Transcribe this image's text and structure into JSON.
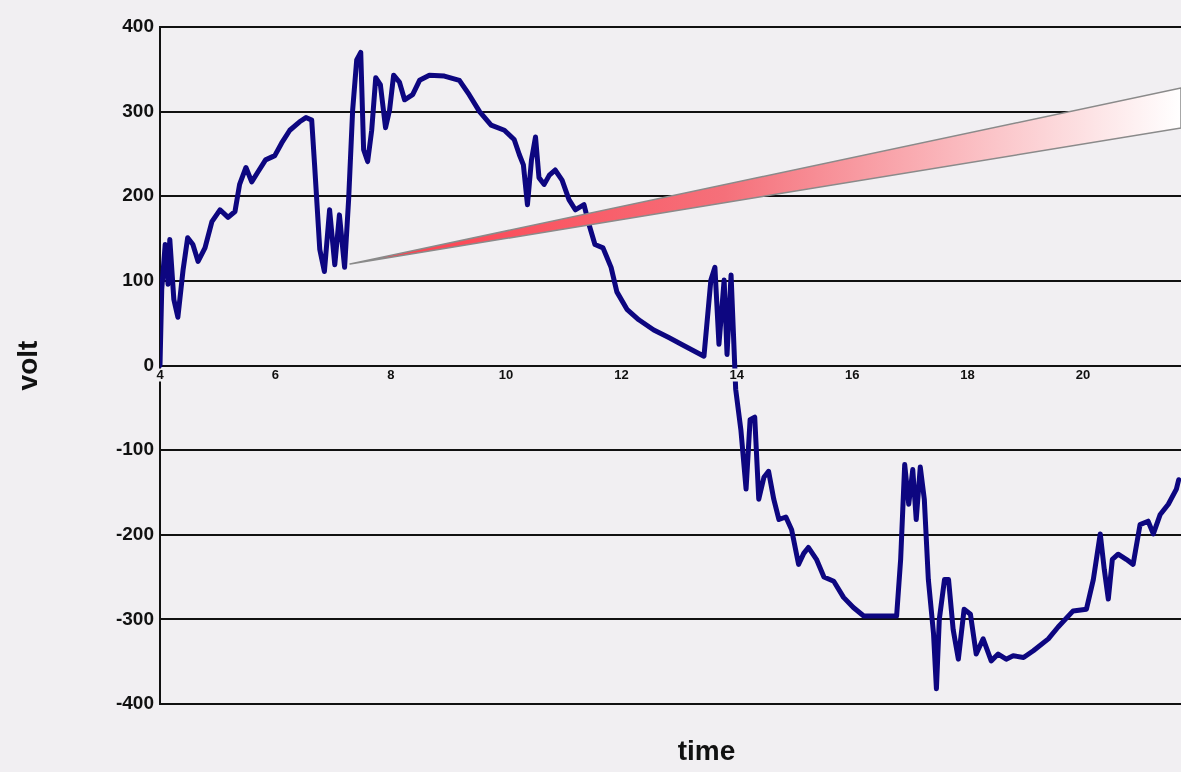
{
  "chart_data": {
    "type": "line",
    "xlabel": "time",
    "ylabel": "volt",
    "xlim": [
      4,
      21.7
    ],
    "xticks": [
      4,
      6,
      8,
      10,
      12,
      14,
      16,
      18,
      20
    ],
    "ylim": [
      -400,
      400
    ],
    "yticks": [
      -400,
      -300,
      -200,
      -100,
      0,
      100,
      200,
      300,
      400
    ],
    "grid": "y",
    "legend": false,
    "marker": "none",
    "line_style": "solid",
    "series": [
      {
        "color": "#0d0680",
        "x": [
          4,
          4.03,
          4.09,
          4.14,
          4.17,
          4.24,
          4.31,
          4.4,
          4.48,
          4.57,
          4.66,
          4.78,
          4.9,
          5.04,
          5.18,
          5.3,
          5.38,
          5.49,
          5.59,
          5.7,
          5.83,
          5.99,
          6.11,
          6.25,
          6.42,
          6.53,
          6.63,
          6.68,
          6.77,
          6.85,
          6.94,
          7.03,
          7.11,
          7.2,
          7.27,
          7.34,
          7.41,
          7.48,
          7.53,
          7.6,
          7.67,
          7.74,
          7.82,
          7.91,
          7.98,
          8.05,
          8.15,
          8.24,
          8.38,
          8.5,
          8.67,
          8.93,
          9.19,
          9.36,
          9.54,
          9.74,
          9.97,
          10.14,
          10.23,
          10.3,
          10.37,
          10.44,
          10.51,
          10.57,
          10.66,
          10.75,
          10.85,
          10.97,
          11.09,
          11.2,
          11.35,
          11.44,
          11.54,
          11.68,
          11.82,
          11.92,
          12.1,
          12.3,
          12.56,
          12.82,
          13.07,
          13.43,
          13.55,
          13.62,
          13.69,
          13.78,
          13.83,
          13.9,
          13.98,
          14.07,
          14.16,
          14.23,
          14.31,
          14.38,
          14.47,
          14.55,
          14.64,
          14.73,
          14.85,
          14.95,
          15.07,
          15.16,
          15.24,
          15.38,
          15.51,
          15.68,
          15.85,
          16.02,
          16.2,
          16.77,
          16.84,
          16.91,
          16.98,
          17.05,
          17.11,
          17.18,
          17.25,
          17.32,
          17.41,
          17.46,
          17.51,
          17.6,
          17.67,
          17.75,
          17.84,
          17.94,
          18.05,
          18.15,
          18.27,
          18.41,
          18.53,
          18.67,
          18.79,
          18.97,
          19.14,
          19.4,
          19.57,
          19.83,
          20.06,
          20.18,
          20.3,
          20.37,
          20.44,
          20.51,
          20.61,
          20.75,
          20.87,
          20.99,
          21.13,
          21.22,
          21.34,
          21.48,
          21.62,
          21.66
        ],
        "values": [
          0,
          90,
          143,
          96,
          149,
          78,
          57,
          113,
          151,
          143,
          123,
          139,
          170,
          184,
          175,
          182,
          214,
          234,
          217,
          229,
          243,
          248,
          263,
          278,
          288,
          293,
          290,
          237,
          137,
          111,
          184,
          119,
          178,
          116,
          196,
          302,
          361,
          370,
          255,
          241,
          278,
          340,
          332,
          281,
          302,
          343,
          335,
          314,
          320,
          337,
          343,
          342,
          337,
          320,
          300,
          284,
          278,
          267,
          249,
          237,
          190,
          243,
          270,
          222,
          214,
          225,
          231,
          219,
          196,
          184,
          190,
          166,
          143,
          139,
          116,
          87,
          66,
          54,
          42,
          33,
          24,
          11,
          101,
          116,
          25,
          101,
          13,
          107,
          -28,
          -76,
          -146,
          -64,
          -61,
          -158,
          -132,
          -125,
          -158,
          -182,
          -179,
          -194,
          -235,
          -222,
          -215,
          -229,
          -250,
          -255,
          -274,
          -286,
          -296,
          -296,
          -229,
          -117,
          -164,
          -123,
          -182,
          -120,
          -158,
          -253,
          -317,
          -382,
          -300,
          -253,
          -253,
          -312,
          -347,
          -288,
          -294,
          -341,
          -323,
          -349,
          -341,
          -347,
          -343,
          -345,
          -337,
          -323,
          -309,
          -290,
          -288,
          -253,
          -199,
          -241,
          -276,
          -229,
          -223,
          -229,
          -235,
          -188,
          -184,
          -199,
          -176,
          -164,
          -146,
          -135
        ]
      }
    ]
  }
}
